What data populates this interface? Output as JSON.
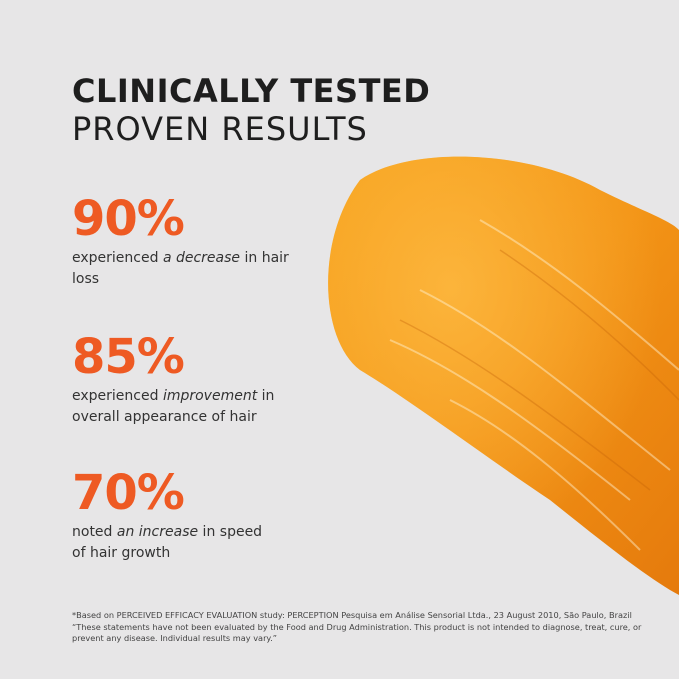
{
  "heading": {
    "line1": "CLINICALLY TESTED",
    "line2": "PROVEN RESULTS"
  },
  "stats": [
    {
      "value": "90%",
      "pre": "experienced ",
      "em": "a decrease",
      "post": " in hair loss"
    },
    {
      "value": "85%",
      "pre": "experienced ",
      "em": "improvement",
      "post": " in overall appearance of hair"
    },
    {
      "value": "70%",
      "pre": "noted ",
      "em": "an increase",
      "post": " in speed of hair growth"
    }
  ],
  "footnote": {
    "line1": "*Based on PERCEIVED EFFICACY EVALUATION study: PERCEPTION Pesquisa em Análise Sensorial Ltda., 23 August 2010, São Paulo, Brazil",
    "line2": "“These statements have not been evaluated by the Food and Drug Administration. This product is not intended to diagnose, treat, cure, or prevent any disease. Individual results may vary.”"
  },
  "colors": {
    "accent": "#ee5a23",
    "background": "#e7e6e7",
    "serum": "#f39a1a"
  }
}
